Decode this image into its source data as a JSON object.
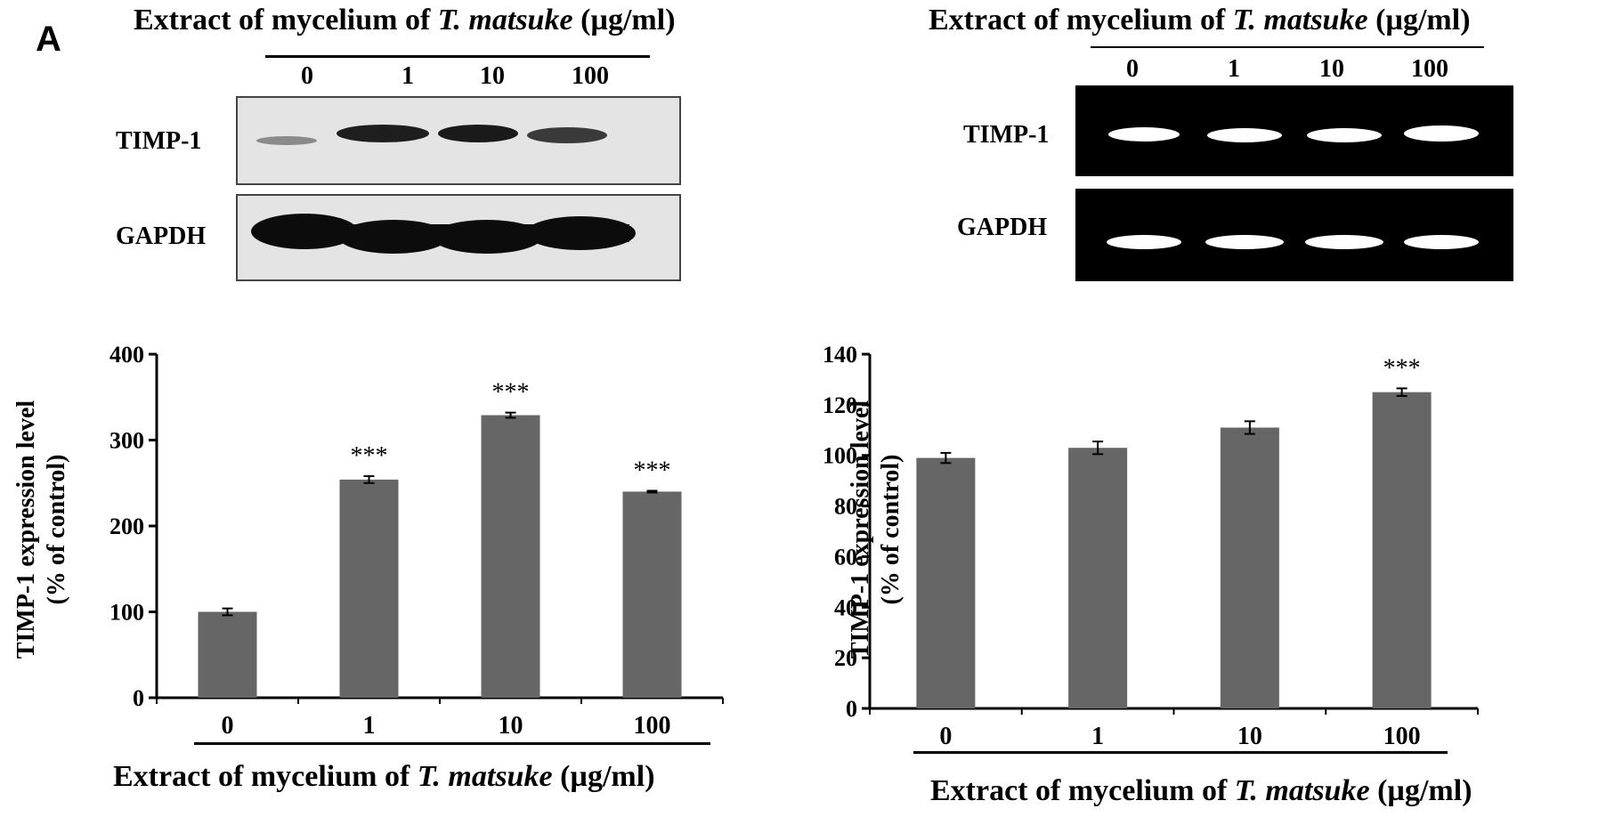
{
  "panel_label": "A",
  "extract_title": {
    "prefix": "Extract of mycelium of ",
    "species": "T. matsuke",
    "unit": "(µg/ml)"
  },
  "lanes": [
    "0",
    "1",
    "10",
    "100"
  ],
  "left_blot": {
    "row1_label": "TIMP-1",
    "row2_label": "GAPDH"
  },
  "right_blot": {
    "row1_label": "TIMP-1",
    "row2_label": "GAPDH"
  },
  "colors": {
    "bar": "#666666",
    "western_bg": "#e4e4e4",
    "gel_bg": "#000000",
    "gel_band": "#ffffff"
  },
  "chart_data": [
    {
      "type": "bar",
      "categories": [
        "0",
        "1",
        "10",
        "100"
      ],
      "values": [
        100,
        254,
        329,
        240
      ],
      "errors": [
        4,
        4,
        3,
        1
      ],
      "significance": [
        "",
        "***",
        "***",
        "***"
      ],
      "ylabel_line1": "TIMP-1 expression level",
      "ylabel_line2": "(% of control)",
      "ylim": [
        0,
        400
      ],
      "yticks": [
        0,
        100,
        200,
        300,
        400
      ],
      "grid": false
    },
    {
      "type": "bar",
      "categories": [
        "0",
        "1",
        "10",
        "100"
      ],
      "values": [
        99,
        103,
        111,
        125
      ],
      "errors": [
        2,
        2.5,
        2.5,
        1.5
      ],
      "significance": [
        "",
        "",
        "",
        "***"
      ],
      "ylabel_line1": "TIMP-1 expression level",
      "ylabel_line2": "(% of control)",
      "ylim": [
        0,
        140
      ],
      "yticks": [
        0,
        20,
        40,
        60,
        80,
        100,
        120,
        140
      ],
      "grid": false
    }
  ]
}
